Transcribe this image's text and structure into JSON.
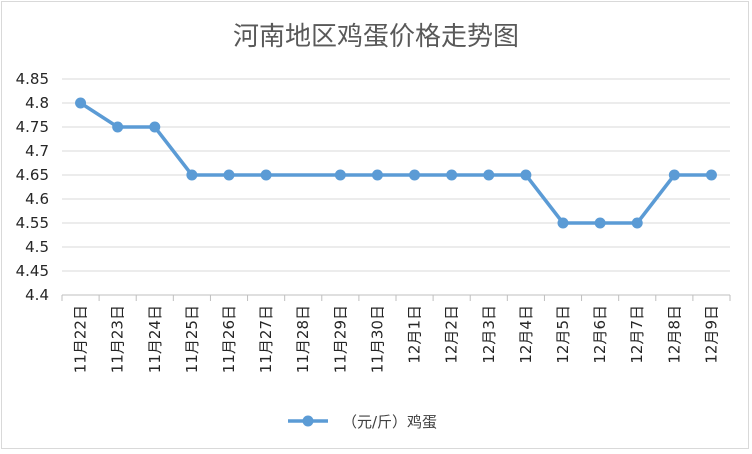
{
  "chart_data": {
    "type": "line",
    "title": "河南地区鸡蛋价格走势图",
    "categories": [
      "11月22日",
      "11月23日",
      "11月24日",
      "11月25日",
      "11月26日",
      "11月27日",
      "11月28日",
      "11月29日",
      "11月30日",
      "12月1日",
      "12月2日",
      "12月3日",
      "12月4日",
      "12月5日",
      "12月6日",
      "12月7日",
      "12月8日",
      "12月9日"
    ],
    "series": [
      {
        "name": "（元/斤）鸡蛋",
        "points": [
          {
            "i": 0,
            "value": 4.8
          },
          {
            "i": 1,
            "value": 4.75
          },
          {
            "i": 2,
            "value": 4.75
          },
          {
            "i": 3,
            "value": 4.65
          },
          {
            "i": 4,
            "value": 4.65
          },
          {
            "i": 5,
            "value": 4.65
          },
          {
            "i": 7,
            "value": 4.65
          },
          {
            "i": 8,
            "value": 4.65
          },
          {
            "i": 9,
            "value": 4.65
          },
          {
            "i": 10,
            "value": 4.65
          },
          {
            "i": 11,
            "value": 4.65
          },
          {
            "i": 12,
            "value": 4.65
          },
          {
            "i": 13,
            "value": 4.55
          },
          {
            "i": 14,
            "value": 4.55
          },
          {
            "i": 15,
            "value": 4.55
          },
          {
            "i": 16,
            "value": 4.65
          },
          {
            "i": 17,
            "value": 4.65
          }
        ],
        "color": "#5b9bd5"
      }
    ],
    "yticks": [
      "4.4",
      "4.45",
      "4.5",
      "4.55",
      "4.6",
      "4.65",
      "4.7",
      "4.75",
      "4.8",
      "4.85"
    ],
    "ylim": [
      4.4,
      4.85
    ],
    "grid": true,
    "legend_position": "bottom"
  }
}
